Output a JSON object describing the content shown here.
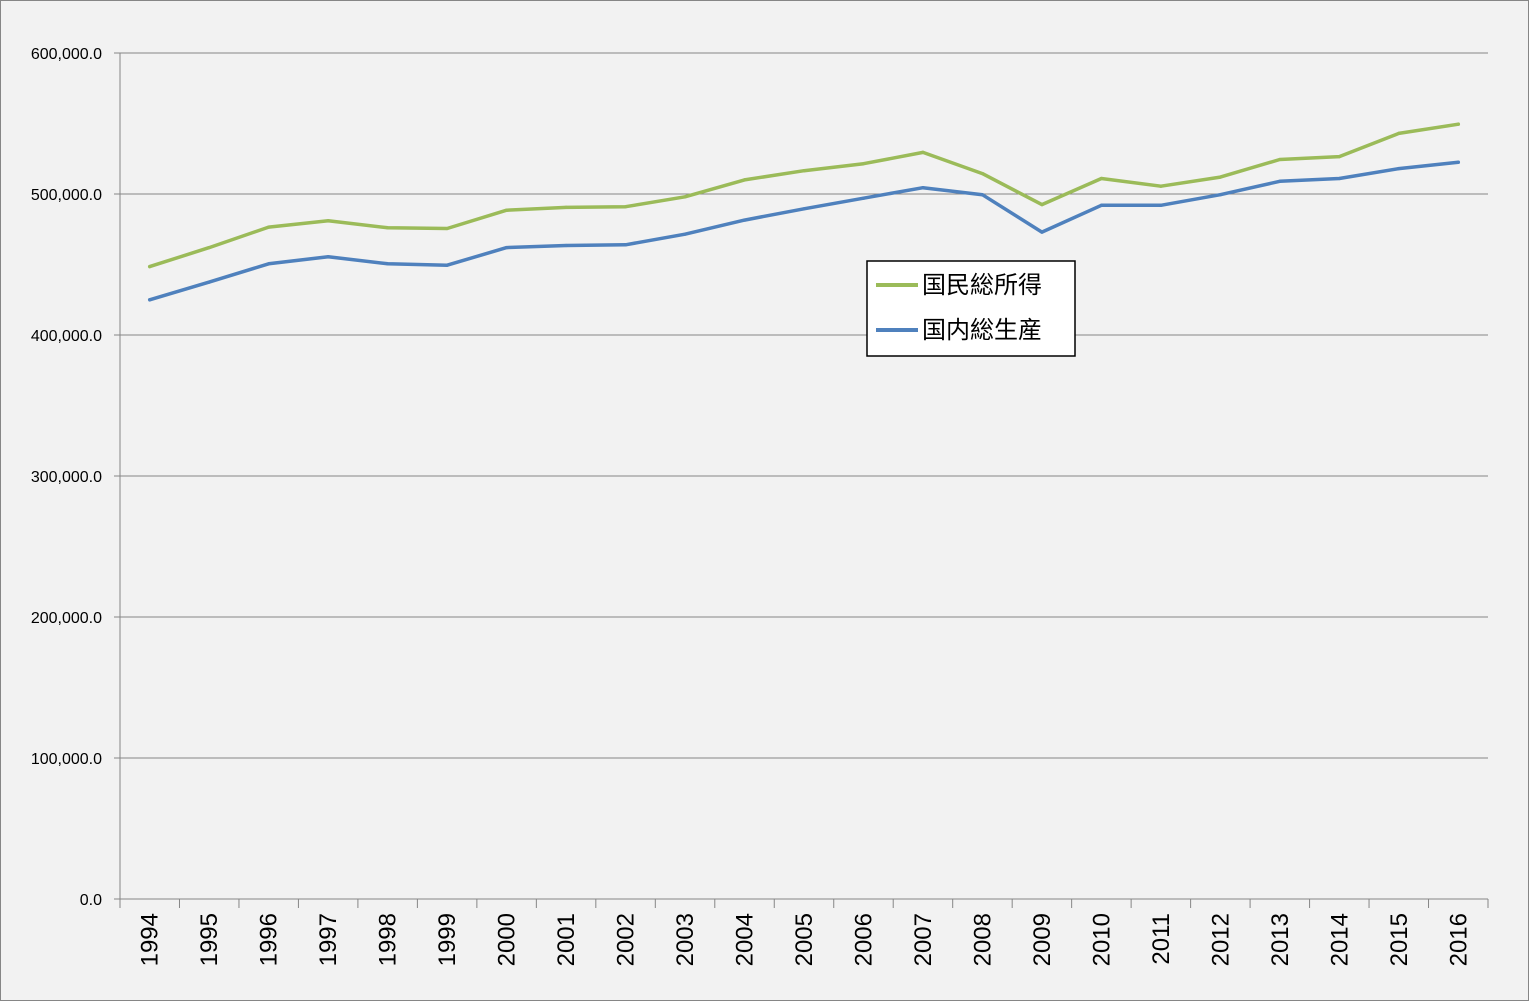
{
  "chart_data": {
    "type": "line",
    "title": "",
    "xlabel": "",
    "ylabel": "",
    "categories": [
      "1994",
      "1995",
      "1996",
      "1997",
      "1998",
      "1999",
      "2000",
      "2001",
      "2002",
      "2003",
      "2004",
      "2005",
      "2006",
      "2007",
      "2008",
      "2009",
      "2010",
      "2011",
      "2012",
      "2013",
      "2014",
      "2015",
      "2016"
    ],
    "y_ticks": [
      "0.0",
      "100,000.0",
      "200,000.0",
      "300,000.0",
      "400,000.0",
      "500,000.0",
      "600,000.0"
    ],
    "ylim": [
      0,
      600000
    ],
    "grid": true,
    "legend_position": "center-right",
    "series": [
      {
        "name": "国民総所得",
        "color": "#9bbb59",
        "values": [
          448500,
          462000,
          476500,
          481000,
          476000,
          475500,
          488500,
          490500,
          491000,
          498000,
          510000,
          516500,
          521500,
          529500,
          514500,
          492500,
          511000,
          505500,
          512000,
          524500,
          526500,
          543000,
          549500
        ]
      },
      {
        "name": "国内総生産",
        "color": "#4f81bd",
        "values": [
          425000,
          437500,
          450500,
          455500,
          450500,
          449500,
          462000,
          463500,
          464000,
          471500,
          481500,
          489500,
          497000,
          504500,
          499500,
          473000,
          492000,
          492000,
          499500,
          509000,
          511000,
          518000,
          522500
        ]
      }
    ]
  }
}
